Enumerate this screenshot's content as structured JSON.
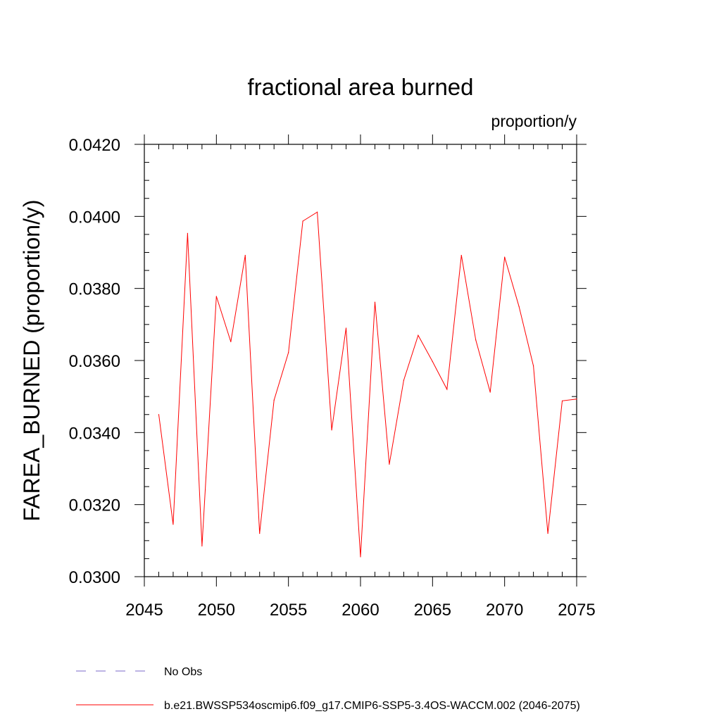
{
  "chart_data": {
    "type": "line",
    "title": "fractional area burned",
    "units": "proportion/y",
    "ylabel": "FAREA_BURNED  (proportion/y)",
    "xlabel": "",
    "xlim": [
      2045,
      2075
    ],
    "ylim": [
      0.03,
      0.042
    ],
    "x_ticks": [
      2045,
      2050,
      2055,
      2060,
      2065,
      2070,
      2075
    ],
    "x_tick_labels": [
      "2045",
      "2050",
      "2055",
      "2060",
      "2065",
      "2070",
      "2075"
    ],
    "y_ticks": [
      0.03,
      0.032,
      0.034,
      0.036,
      0.038,
      0.04,
      0.042
    ],
    "y_tick_labels": [
      "0.0300",
      "0.0320",
      "0.0340",
      "0.0360",
      "0.0380",
      "0.0400",
      "0.0420"
    ],
    "grid": false,
    "legend_position": "bottom",
    "series": [
      {
        "name": "b.e21.BWSSP534oscmip6.f09_g17.CMIP6-SSP5-3.4OS-WACCM.002 (2046-2075)",
        "color": "#ff0000",
        "style": "solid",
        "x": [
          2046,
          2047,
          2048,
          2049,
          2050,
          2051,
          2052,
          2053,
          2054,
          2055,
          2056,
          2057,
          2058,
          2059,
          2060,
          2061,
          2062,
          2063,
          2064,
          2065,
          2066,
          2067,
          2068,
          2069,
          2070,
          2071,
          2072,
          2073,
          2074,
          2075
        ],
        "y": [
          0.0345,
          0.03145,
          0.03953,
          0.03085,
          0.03778,
          0.03652,
          0.03892,
          0.0312,
          0.0349,
          0.03622,
          0.03987,
          0.04012,
          0.03407,
          0.0369,
          0.03055,
          0.03762,
          0.03312,
          0.03545,
          0.0367,
          0.03597,
          0.0352,
          0.03892,
          0.03657,
          0.03512,
          0.03887,
          0.0375,
          0.03585,
          0.0312,
          0.03488,
          0.03493
        ]
      }
    ],
    "legend": [
      {
        "label": "No Obs",
        "color": "#7b68c9",
        "style": "dashed"
      },
      {
        "label": "b.e21.BWSSP534oscmip6.f09_g17.CMIP6-SSP5-3.4OS-WACCM.002 (2046-2075)",
        "color": "#ff0000",
        "style": "solid"
      }
    ]
  }
}
